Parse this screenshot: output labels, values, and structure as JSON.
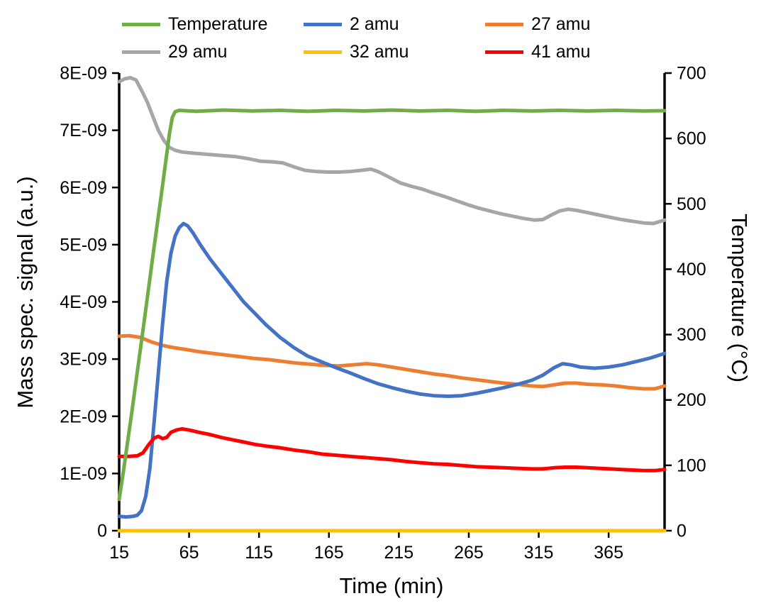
{
  "figure": {
    "background": "#ffffff"
  },
  "chart_data": {
    "type": "line",
    "title": "",
    "grid": false,
    "legend_position": "top",
    "axes": {
      "x": {
        "label": "Time (min)",
        "lim": [
          15,
          405
        ],
        "ticks": [
          15,
          65,
          115,
          165,
          215,
          265,
          315,
          365
        ]
      },
      "y_left": {
        "label": "Mass spec. signal (a.u.)",
        "lim": [
          0,
          8
        ],
        "unit": "1E-09 a.u.",
        "tick_labels": [
          "0",
          "1E-09",
          "2E-09",
          "3E-09",
          "4E-09",
          "5E-09",
          "6E-09",
          "7E-09",
          "8E-09"
        ]
      },
      "y_right": {
        "label": "Temperature (°C)",
        "lim": [
          0,
          700
        ],
        "ticks": [
          0,
          100,
          200,
          300,
          400,
          500,
          600,
          700
        ]
      }
    },
    "series": [
      {
        "id": "temperature",
        "name": "Temperature",
        "color": "#70AD47",
        "axis": "right",
        "unit": "°C",
        "points": [
          [
            15,
            48
          ],
          [
            18,
            90
          ],
          [
            21,
            135
          ],
          [
            24,
            180
          ],
          [
            27,
            228
          ],
          [
            30,
            275
          ],
          [
            33,
            322
          ],
          [
            36,
            370
          ],
          [
            39,
            418
          ],
          [
            42,
            465
          ],
          [
            45,
            512
          ],
          [
            48,
            560
          ],
          [
            51,
            608
          ],
          [
            53,
            632
          ],
          [
            55,
            641
          ],
          [
            58,
            643
          ],
          [
            70,
            641.5
          ],
          [
            90,
            643.5
          ],
          [
            110,
            642
          ],
          [
            130,
            643
          ],
          [
            150,
            641.5
          ],
          [
            170,
            643
          ],
          [
            190,
            642
          ],
          [
            210,
            643.5
          ],
          [
            230,
            642
          ],
          [
            250,
            643
          ],
          [
            270,
            641.5
          ],
          [
            290,
            643
          ],
          [
            310,
            642
          ],
          [
            330,
            643
          ],
          [
            350,
            642
          ],
          [
            370,
            643
          ],
          [
            390,
            642
          ],
          [
            405,
            642.5
          ]
        ]
      },
      {
        "id": "2-amu",
        "name": "2 amu",
        "color": "#4472C4",
        "axis": "left",
        "unit": "1E-09 a.u.",
        "points": [
          [
            15,
            0.25
          ],
          [
            20,
            0.24
          ],
          [
            25,
            0.25
          ],
          [
            28,
            0.27
          ],
          [
            31,
            0.35
          ],
          [
            34,
            0.6
          ],
          [
            37,
            1.1
          ],
          [
            40,
            1.9
          ],
          [
            43,
            2.75
          ],
          [
            46,
            3.6
          ],
          [
            49,
            4.35
          ],
          [
            52,
            4.85
          ],
          [
            55,
            5.15
          ],
          [
            58,
            5.3
          ],
          [
            61,
            5.37
          ],
          [
            64,
            5.33
          ],
          [
            68,
            5.2
          ],
          [
            73,
            5.0
          ],
          [
            80,
            4.75
          ],
          [
            88,
            4.5
          ],
          [
            96,
            4.25
          ],
          [
            104,
            4.0
          ],
          [
            112,
            3.8
          ],
          [
            120,
            3.6
          ],
          [
            130,
            3.38
          ],
          [
            140,
            3.2
          ],
          [
            150,
            3.05
          ],
          [
            160,
            2.95
          ],
          [
            170,
            2.85
          ],
          [
            180,
            2.76
          ],
          [
            190,
            2.66
          ],
          [
            200,
            2.57
          ],
          [
            210,
            2.5
          ],
          [
            220,
            2.44
          ],
          [
            230,
            2.39
          ],
          [
            240,
            2.36
          ],
          [
            250,
            2.35
          ],
          [
            260,
            2.36
          ],
          [
            270,
            2.4
          ],
          [
            280,
            2.45
          ],
          [
            290,
            2.5
          ],
          [
            300,
            2.56
          ],
          [
            310,
            2.63
          ],
          [
            318,
            2.72
          ],
          [
            326,
            2.85
          ],
          [
            332,
            2.92
          ],
          [
            338,
            2.9
          ],
          [
            345,
            2.86
          ],
          [
            355,
            2.84
          ],
          [
            365,
            2.86
          ],
          [
            375,
            2.9
          ],
          [
            385,
            2.96
          ],
          [
            395,
            3.02
          ],
          [
            405,
            3.1
          ]
        ]
      },
      {
        "id": "27-amu",
        "name": "27 amu",
        "color": "#ED7D31",
        "axis": "left",
        "unit": "1E-09 a.u.",
        "points": [
          [
            15,
            3.4
          ],
          [
            22,
            3.41
          ],
          [
            30,
            3.38
          ],
          [
            38,
            3.3
          ],
          [
            46,
            3.24
          ],
          [
            54,
            3.2
          ],
          [
            62,
            3.17
          ],
          [
            72,
            3.13
          ],
          [
            82,
            3.1
          ],
          [
            92,
            3.07
          ],
          [
            102,
            3.04
          ],
          [
            112,
            3.01
          ],
          [
            122,
            2.99
          ],
          [
            132,
            2.96
          ],
          [
            142,
            2.93
          ],
          [
            152,
            2.91
          ],
          [
            162,
            2.89
          ],
          [
            172,
            2.88
          ],
          [
            182,
            2.9
          ],
          [
            192,
            2.92
          ],
          [
            200,
            2.9
          ],
          [
            210,
            2.86
          ],
          [
            220,
            2.82
          ],
          [
            230,
            2.78
          ],
          [
            240,
            2.74
          ],
          [
            250,
            2.71
          ],
          [
            260,
            2.67
          ],
          [
            270,
            2.64
          ],
          [
            280,
            2.61
          ],
          [
            290,
            2.58
          ],
          [
            300,
            2.56
          ],
          [
            310,
            2.53
          ],
          [
            318,
            2.52
          ],
          [
            326,
            2.55
          ],
          [
            334,
            2.58
          ],
          [
            342,
            2.58
          ],
          [
            350,
            2.56
          ],
          [
            360,
            2.55
          ],
          [
            370,
            2.53
          ],
          [
            380,
            2.5
          ],
          [
            390,
            2.48
          ],
          [
            398,
            2.48
          ],
          [
            405,
            2.53
          ]
        ]
      },
      {
        "id": "29-amu",
        "name": "29 amu",
        "color": "#A6A6A6",
        "axis": "left",
        "unit": "1E-09 a.u.",
        "points": [
          [
            15,
            7.85
          ],
          [
            19,
            7.9
          ],
          [
            23,
            7.92
          ],
          [
            27,
            7.88
          ],
          [
            31,
            7.7
          ],
          [
            35,
            7.5
          ],
          [
            39,
            7.25
          ],
          [
            43,
            7.0
          ],
          [
            47,
            6.82
          ],
          [
            51,
            6.7
          ],
          [
            55,
            6.65
          ],
          [
            60,
            6.62
          ],
          [
            68,
            6.6
          ],
          [
            78,
            6.58
          ],
          [
            88,
            6.56
          ],
          [
            98,
            6.54
          ],
          [
            108,
            6.5
          ],
          [
            116,
            6.46
          ],
          [
            124,
            6.45
          ],
          [
            132,
            6.43
          ],
          [
            140,
            6.36
          ],
          [
            148,
            6.3
          ],
          [
            156,
            6.28
          ],
          [
            164,
            6.27
          ],
          [
            172,
            6.27
          ],
          [
            180,
            6.28
          ],
          [
            188,
            6.3
          ],
          [
            195,
            6.32
          ],
          [
            200,
            6.28
          ],
          [
            208,
            6.18
          ],
          [
            216,
            6.08
          ],
          [
            224,
            6.02
          ],
          [
            232,
            5.97
          ],
          [
            240,
            5.9
          ],
          [
            248,
            5.84
          ],
          [
            256,
            5.77
          ],
          [
            264,
            5.7
          ],
          [
            272,
            5.64
          ],
          [
            280,
            5.59
          ],
          [
            288,
            5.54
          ],
          [
            296,
            5.5
          ],
          [
            304,
            5.46
          ],
          [
            312,
            5.43
          ],
          [
            318,
            5.44
          ],
          [
            324,
            5.52
          ],
          [
            330,
            5.59
          ],
          [
            336,
            5.62
          ],
          [
            342,
            5.6
          ],
          [
            350,
            5.56
          ],
          [
            358,
            5.52
          ],
          [
            366,
            5.48
          ],
          [
            374,
            5.44
          ],
          [
            382,
            5.41
          ],
          [
            390,
            5.38
          ],
          [
            397,
            5.37
          ],
          [
            405,
            5.43
          ]
        ]
      },
      {
        "id": "32-amu",
        "name": "32 amu",
        "color": "#FFC000",
        "axis": "left",
        "unit": "1E-09 a.u.",
        "points": [
          [
            15,
            0
          ],
          [
            100,
            0
          ],
          [
            200,
            0
          ],
          [
            300,
            0
          ],
          [
            405,
            0
          ]
        ]
      },
      {
        "id": "41-amu",
        "name": "41 amu",
        "color": "#FF0000",
        "axis": "left",
        "unit": "1E-09 a.u.",
        "points": [
          [
            15,
            1.3
          ],
          [
            22,
            1.3
          ],
          [
            28,
            1.31
          ],
          [
            32,
            1.36
          ],
          [
            36,
            1.5
          ],
          [
            40,
            1.62
          ],
          [
            43,
            1.65
          ],
          [
            46,
            1.61
          ],
          [
            49,
            1.63
          ],
          [
            52,
            1.72
          ],
          [
            56,
            1.76
          ],
          [
            60,
            1.78
          ],
          [
            65,
            1.76
          ],
          [
            72,
            1.72
          ],
          [
            80,
            1.68
          ],
          [
            88,
            1.63
          ],
          [
            96,
            1.59
          ],
          [
            104,
            1.55
          ],
          [
            112,
            1.51
          ],
          [
            120,
            1.48
          ],
          [
            130,
            1.45
          ],
          [
            140,
            1.41
          ],
          [
            150,
            1.38
          ],
          [
            160,
            1.34
          ],
          [
            170,
            1.32
          ],
          [
            180,
            1.3
          ],
          [
            190,
            1.28
          ],
          [
            200,
            1.26
          ],
          [
            210,
            1.24
          ],
          [
            220,
            1.21
          ],
          [
            230,
            1.19
          ],
          [
            240,
            1.17
          ],
          [
            250,
            1.16
          ],
          [
            260,
            1.14
          ],
          [
            270,
            1.12
          ],
          [
            280,
            1.11
          ],
          [
            290,
            1.1
          ],
          [
            300,
            1.09
          ],
          [
            310,
            1.08
          ],
          [
            318,
            1.08
          ],
          [
            326,
            1.1
          ],
          [
            334,
            1.11
          ],
          [
            342,
            1.11
          ],
          [
            350,
            1.1
          ],
          [
            358,
            1.09
          ],
          [
            366,
            1.08
          ],
          [
            374,
            1.07
          ],
          [
            382,
            1.06
          ],
          [
            390,
            1.05
          ],
          [
            398,
            1.05
          ],
          [
            405,
            1.07
          ]
        ]
      }
    ]
  }
}
